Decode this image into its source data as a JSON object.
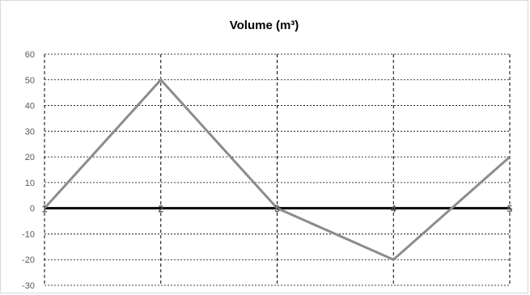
{
  "chart_data": {
    "type": "line",
    "title": "Volume (m³)",
    "categories": [
      "1",
      "2",
      "3",
      "4",
      "5"
    ],
    "series": [
      {
        "values": [
          0,
          50,
          0,
          -20,
          20
        ],
        "color": "#8c8c8c"
      }
    ],
    "ylim": [
      -30,
      60
    ],
    "yticks": [
      "60",
      "50",
      "40",
      "30",
      "20",
      "10",
      "0",
      "-10",
      "-20",
      "-30"
    ],
    "grid": true,
    "grid_style": "dashed",
    "zero_line_color": "#000000"
  }
}
